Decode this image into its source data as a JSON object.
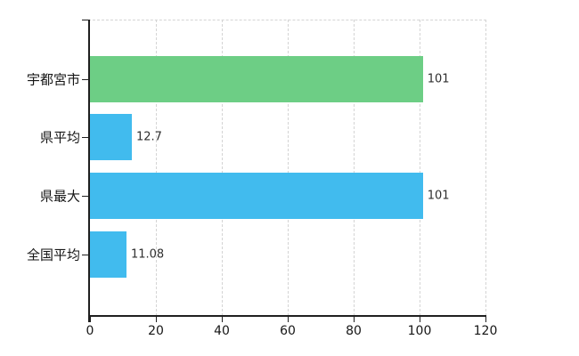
{
  "chart_data": {
    "type": "bar",
    "orientation": "horizontal",
    "title": "",
    "categories": [
      "宇都宮市",
      "県平均",
      "県最大",
      "全国平均"
    ],
    "values": [
      101,
      12.7,
      101,
      11.08
    ],
    "value_labels": [
      "101",
      "12.7",
      "101",
      "11.08"
    ],
    "bar_colors": [
      "#6DCE85",
      "#41BBEE",
      "#41BBEE",
      "#41BBEE"
    ],
    "xlabel": "",
    "ylabel": "",
    "xlim": [
      0,
      120
    ],
    "x_ticks": [
      0,
      20,
      40,
      60,
      80,
      100,
      120
    ],
    "grid": "vertical-dashed",
    "legend": "none"
  },
  "colors": {
    "green_bar": "#6DCE85",
    "blue_bar": "#41BBEE",
    "gridline": "#D4D4D4",
    "axis": "#1F1F1F",
    "tick_text": "#161616",
    "value_text": "#2E2E2E",
    "background": "#FFFFFF"
  }
}
